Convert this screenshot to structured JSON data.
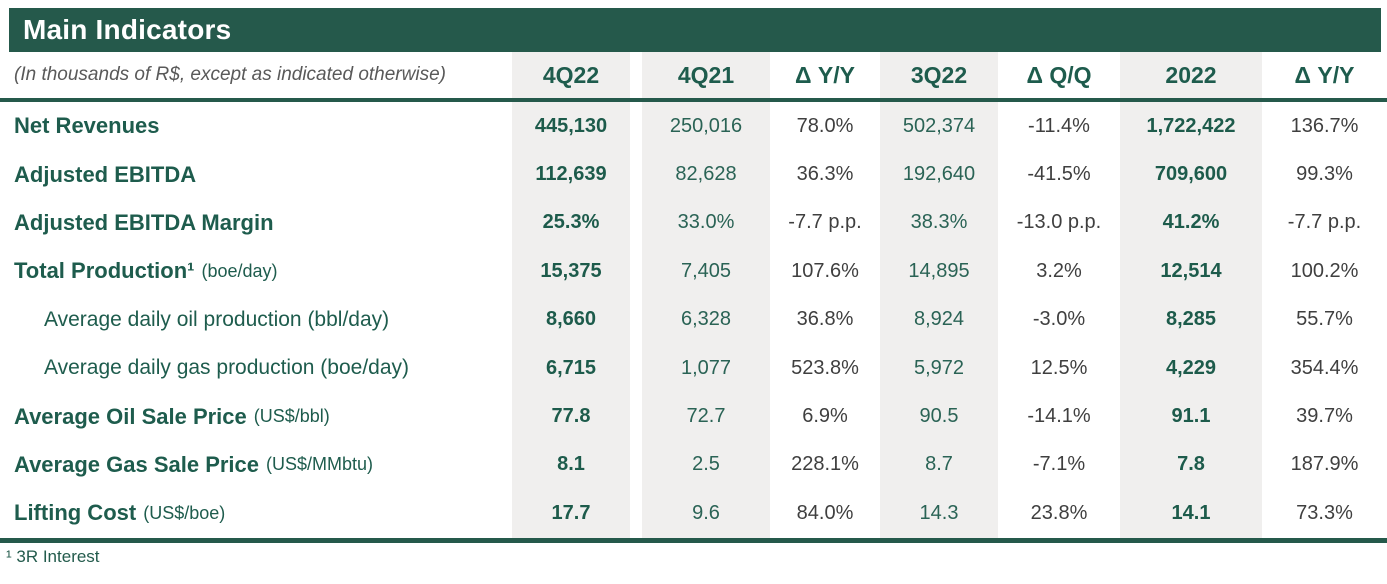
{
  "title": "Main Indicators",
  "subtitle": "(In thousands of R$, except as indicated otherwise)",
  "columns": [
    "4Q22",
    "4Q21",
    "Δ Y/Y",
    "3Q22",
    "Δ Q/Q",
    "2022",
    "Δ Y/Y"
  ],
  "rows": [
    {
      "label": "Net Revenues",
      "unit": "",
      "indent": false,
      "values": [
        "445,130",
        "250,016",
        "78.0%",
        "502,374",
        "-11.4%",
        "1,722,422",
        "136.7%"
      ]
    },
    {
      "label": "Adjusted EBITDA",
      "unit": "",
      "indent": false,
      "values": [
        "112,639",
        "82,628",
        "36.3%",
        "192,640",
        "-41.5%",
        "709,600",
        "99.3%"
      ]
    },
    {
      "label": "Adjusted EBITDA Margin",
      "unit": "",
      "indent": false,
      "values": [
        "25.3%",
        "33.0%",
        "-7.7 p.p.",
        "38.3%",
        "-13.0 p.p.",
        "41.2%",
        "-7.7 p.p."
      ]
    },
    {
      "label": "Total Production¹",
      "unit": "(boe/day)",
      "indent": false,
      "values": [
        "15,375",
        "7,405",
        "107.6%",
        "14,895",
        "3.2%",
        "12,514",
        "100.2%"
      ]
    },
    {
      "label": "Average daily oil production (bbl/day)",
      "unit": "",
      "indent": true,
      "values": [
        "8,660",
        "6,328",
        "36.8%",
        "8,924",
        "-3.0%",
        "8,285",
        "55.7%"
      ]
    },
    {
      "label": "Average daily gas production (boe/day)",
      "unit": "",
      "indent": true,
      "values": [
        "6,715",
        "1,077",
        "523.8%",
        "5,972",
        "12.5%",
        "4,229",
        "354.4%"
      ]
    },
    {
      "label": "Average Oil Sale Price",
      "unit": "(US$/bbl)",
      "indent": false,
      "values": [
        "77.8",
        "72.7",
        "6.9%",
        "90.5",
        "-14.1%",
        "91.1",
        "39.7%"
      ]
    },
    {
      "label": "Average Gas Sale Price",
      "unit": "(US$/MMbtu)",
      "indent": false,
      "values": [
        "8.1",
        "2.5",
        "228.1%",
        "8.7",
        "-7.1%",
        "7.8",
        "187.9%"
      ]
    },
    {
      "label": "Lifting Cost",
      "unit": "(US$/boe)",
      "indent": false,
      "values": [
        "17.7",
        "9.6",
        "84.0%",
        "14.3",
        "23.8%",
        "14.1",
        "73.3%"
      ]
    }
  ],
  "footnote": "¹ 3R Interest",
  "colors": {
    "brand_green": "#25594B",
    "label_green": "#1E5C4D",
    "value_green": "#2A6355",
    "delta_gray": "#3F3F3F",
    "band_gray": "#F0EFEE",
    "subtitle_gray": "#595959"
  }
}
